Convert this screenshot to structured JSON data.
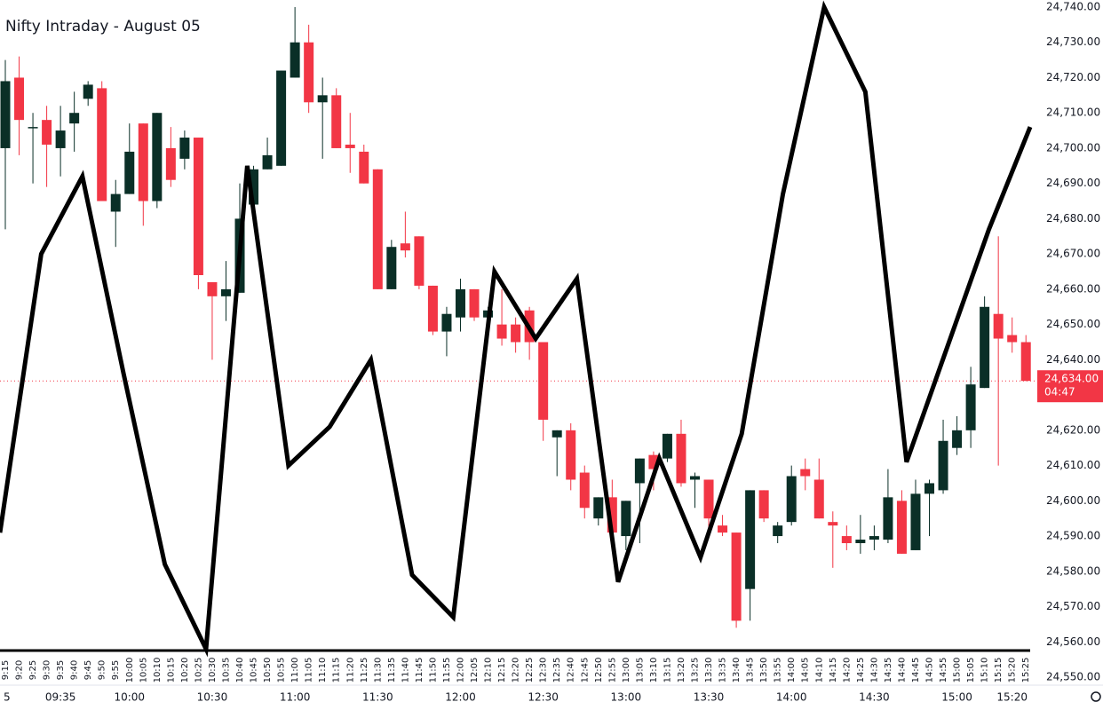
{
  "chart_data": {
    "type": "candlestick",
    "title": "Nifty Intraday - August 05",
    "categories": [
      "9:15",
      "9:20",
      "9:25",
      "9:30",
      "9:35",
      "9:40",
      "9:45",
      "9:50",
      "9:55",
      "10:00",
      "10:05",
      "10:10",
      "10:15",
      "10:20",
      "10:25",
      "10:30",
      "10:35",
      "10:40",
      "10:45",
      "10:50",
      "10:55",
      "11:00",
      "11:05",
      "11:10",
      "11:15",
      "11:20",
      "11:25",
      "11:30",
      "11:35",
      "11:40",
      "11:45",
      "11:50",
      "11:55",
      "12:00",
      "12:05",
      "12:10",
      "12:15",
      "12:20",
      "12:25",
      "12:30",
      "12:35",
      "12:40",
      "12:45",
      "12:50",
      "12:55",
      "13:00",
      "13:05",
      "13:10",
      "13:15",
      "13:20",
      "13:25",
      "13:30",
      "13:35",
      "13:40",
      "13:45",
      "13:50",
      "13:55",
      "14:00",
      "14:05",
      "14:10",
      "14:15",
      "14:20",
      "14:25",
      "14:30",
      "14:35",
      "14:40",
      "14:45",
      "14:50",
      "14:55",
      "15:00",
      "15:05",
      "15:10",
      "15:15",
      "15:20",
      "15:25"
    ],
    "open": [
      24700,
      24720,
      24706,
      24708,
      24700,
      24707,
      24714,
      24717,
      24682,
      24687,
      24707,
      24685,
      24700,
      24697,
      24703,
      24662,
      24658,
      24659,
      24684,
      24694,
      24695,
      24720,
      24730,
      24713,
      24715,
      24701,
      24699,
      24694,
      24660,
      24673,
      24675,
      24661,
      24648,
      24652,
      24660,
      24652,
      24650,
      24650,
      24654,
      24645,
      24618,
      24620,
      24608,
      24595,
      24601,
      24590,
      24605,
      24613,
      24612,
      24619,
      24606,
      24606,
      24593,
      24591,
      24575,
      24603,
      24590,
      24594,
      24609,
      24606,
      24594,
      24590,
      24588,
      24589,
      24589,
      24600,
      24586,
      24602,
      24603,
      24615,
      24620,
      24632,
      24653,
      24647,
      24645
    ],
    "high": [
      24725,
      24726,
      24710,
      24712,
      24712,
      24716,
      24719,
      24719,
      24691,
      24707,
      24707,
      24710,
      24706,
      24705,
      24703,
      24662,
      24668,
      24690,
      24695,
      24703,
      24722,
      24740,
      24735,
      24720,
      24717,
      24710,
      24701,
      24694,
      24674,
      24682,
      24675,
      24661,
      24655,
      24663,
      24660,
      24655,
      24660,
      24652,
      24655,
      24645,
      24620,
      24622,
      24610,
      24601,
      24606,
      24600,
      24612,
      24614,
      24619,
      24623,
      24608,
      24606,
      24596,
      24591,
      24603,
      24603,
      24594,
      24610,
      24612,
      24612,
      24597,
      24593,
      24596,
      24593,
      24609,
      24603,
      24606,
      24606,
      24623,
      24624,
      24638,
      24658,
      24675,
      24652,
      24647
    ],
    "low": [
      24677,
      24698,
      24690,
      24689,
      24692,
      24699,
      24712,
      24685,
      24672,
      24687,
      24678,
      24683,
      24689,
      24694,
      24660,
      24640,
      24651,
      24659,
      24684,
      24694,
      24695,
      24720,
      24710,
      24697,
      24700,
      24693,
      24690,
      24660,
      24660,
      24669,
      24660,
      24647,
      24641,
      24648,
      24651,
      24651,
      24644,
      24642,
      24640,
      24617,
      24607,
      24603,
      24595,
      24593,
      24590,
      24586,
      24588,
      24603,
      24611,
      24604,
      24598,
      24590,
      24590,
      24564,
      24566,
      24594,
      24588,
      24593,
      24603,
      24595,
      24581,
      24586,
      24585,
      24586,
      24588,
      24585,
      24586,
      24590,
      24602,
      24613,
      24615,
      24632,
      24610,
      24642,
      24634
    ],
    "close": [
      24719,
      24708,
      24706,
      24701,
      24705,
      24710,
      24718,
      24685,
      24687,
      24699,
      24685,
      24710,
      24691,
      24703,
      24664,
      24658,
      24660,
      24680,
      24694,
      24698,
      24722,
      24730,
      24713,
      24715,
      24700,
      24700,
      24690,
      24660,
      24672,
      24671,
      24661,
      24648,
      24653,
      24660,
      24652,
      24654,
      24646,
      24645,
      24645,
      24623,
      24620,
      24606,
      24598,
      24601,
      24591,
      24600,
      24612,
      24609,
      24619,
      24605,
      24607,
      24595,
      24591,
      24566,
      24603,
      24595,
      24593,
      24607,
      24607,
      24595,
      24593,
      24588,
      24589,
      24590,
      24601,
      24585,
      24602,
      24605,
      24617,
      24620,
      24633,
      24655,
      24646,
      24645,
      24634
    ],
    "up_color": "#0a2f27",
    "down_color": "#f23645",
    "overlay": {
      "color": "#000000",
      "values": [
        24591,
        24670,
        24692,
        24636,
        24582,
        24558,
        24695,
        24610,
        24621,
        24640,
        24579,
        24567,
        24665,
        24646,
        24663,
        24577,
        24612,
        24584,
        24619,
        24687,
        24740,
        24716,
        24611,
        24644,
        24677,
        24706
      ]
    },
    "x_major_labels": [
      "5",
      "09:35",
      "10:00",
      "10:30",
      "11:00",
      "11:30",
      "12:00",
      "12:30",
      "13:00",
      "13:30",
      "14:00",
      "14:30",
      "15:00",
      "15:20"
    ],
    "ylim": [
      24550,
      24740
    ],
    "yticks": [
      {
        "value": 24550,
        "label": "24,550.00"
      },
      {
        "value": 24560,
        "label": "24,560.00"
      },
      {
        "value": 24570,
        "label": "24,570.00"
      },
      {
        "value": 24580,
        "label": "24,580.00"
      },
      {
        "value": 24590,
        "label": "24,590.00"
      },
      {
        "value": 24600,
        "label": "24,600.00"
      },
      {
        "value": 24610,
        "label": "24,610.00"
      },
      {
        "value": 24620,
        "label": "24,620.00"
      },
      {
        "value": 24630,
        "label": "24,630.00"
      },
      {
        "value": 24640,
        "label": "24,640.00"
      },
      {
        "value": 24650,
        "label": "24,650.00"
      },
      {
        "value": 24660,
        "label": "24,660.00"
      },
      {
        "value": 24670,
        "label": "24,670.00"
      },
      {
        "value": 24680,
        "label": "24,680.00"
      },
      {
        "value": 24690,
        "label": "24,690.00"
      },
      {
        "value": 24700,
        "label": "24,700.00"
      },
      {
        "value": 24710,
        "label": "24,710.00"
      },
      {
        "value": 24720,
        "label": "24,720.00"
      },
      {
        "value": 24730,
        "label": "24,730.00"
      },
      {
        "value": 24740,
        "label": "24,740.00"
      }
    ],
    "last_price": {
      "value": 24634,
      "label": "24,634.00"
    },
    "countdown": "04:47"
  }
}
